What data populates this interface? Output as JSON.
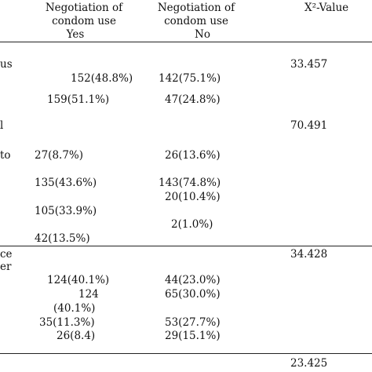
{
  "header": {
    "yes_column": [
      "Negotiation of",
      "condom use",
      "Yes"
    ],
    "no_column": [
      "Negotiation of",
      "condom use",
      "No"
    ],
    "chi_square_column": "X²-Value"
  },
  "groups": [
    {
      "label": [
        "us"
      ],
      "yes": [
        "152(48.8%)",
        "159(51.1%)"
      ],
      "no": [
        "142(75.1%)",
        "47(24.8%)"
      ],
      "chi_square": "33.457"
    },
    {
      "label": [
        "l",
        "to"
      ],
      "yes": [
        "27(8.7%)",
        "135(43.6%)",
        "105(33.9%)",
        "42(13.5%)"
      ],
      "no": [
        "26(13.6%)",
        "143(74.8%)",
        "20(10.4%)",
        "2(1.0%)"
      ],
      "chi_square": "70.491"
    },
    {
      "label": [
        "ce",
        "er"
      ],
      "yes": [
        "124(40.1%)",
        "124",
        "(40.1%)",
        "35(11.3%)",
        "26(8.4)"
      ],
      "no": [
        "44(23.0%)",
        "65(30.0%)",
        "53(27.7%)",
        "29(15.1%)"
      ],
      "chi_square": "34.428"
    },
    {
      "chi_square": "23.425"
    }
  ]
}
